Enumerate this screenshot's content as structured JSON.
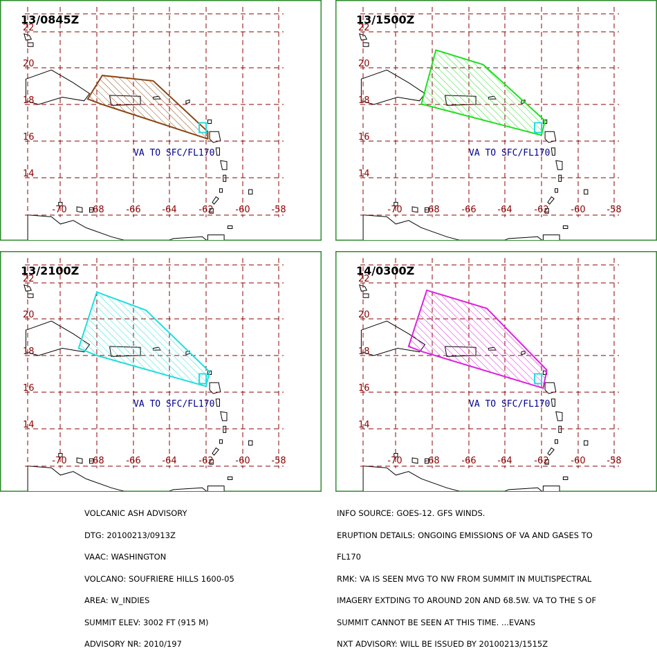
{
  "panels": [
    {
      "time": "13/0845Z",
      "color": "#8b4513",
      "polygon": [
        [
          -68.5,
          18.3
        ],
        [
          -67.7,
          19.6
        ],
        [
          -64.9,
          19.3
        ],
        [
          -61.9,
          16.5
        ],
        [
          -61.9,
          16.1
        ],
        [
          -67.7,
          18.0
        ]
      ]
    },
    {
      "time": "13/1500Z",
      "color": "#22dd22",
      "polygon": [
        [
          -68.6,
          18.0
        ],
        [
          -67.8,
          21.0
        ],
        [
          -65.2,
          20.2
        ],
        [
          -61.8,
          17.1
        ],
        [
          -62.0,
          16.3
        ],
        [
          -68.5,
          18.0
        ]
      ]
    },
    {
      "time": "13/2100Z",
      "color": "#22dddd",
      "polygon": [
        [
          -69.0,
          18.4
        ],
        [
          -68.0,
          21.5
        ],
        [
          -65.3,
          20.5
        ],
        [
          -61.8,
          17.1
        ],
        [
          -62.0,
          16.3
        ],
        [
          -68.0,
          18.0
        ]
      ]
    },
    {
      "time": "14/0300Z",
      "color": "#dd22dd",
      "polygon": [
        [
          -69.3,
          18.5
        ],
        [
          -68.3,
          21.6
        ],
        [
          -65.0,
          20.6
        ],
        [
          -61.7,
          17.2
        ],
        [
          -61.9,
          16.2
        ],
        [
          -68.5,
          18.2
        ]
      ]
    }
  ],
  "va_label": "VA TO SFC/FL170",
  "vent_color": "#22dddd",
  "lat_ticks": [
    "22",
    "20",
    "18",
    "16",
    "14"
  ],
  "lon_ticks": [
    "-70",
    "-68",
    "-66",
    "-64",
    "-62",
    "-60",
    "-58"
  ],
  "advisory_left": [
    "VOLCANIC ASH ADVISORY",
    "DTG: 20100213/0913Z",
    "VAAC: WASHINGTON",
    "VOLCANO: SOUFRIERE HILLS 1600-05",
    "AREA: W_INDIES",
    "SUMMIT ELEV: 3002 FT (915 M)",
    "ADVISORY NR: 2010/197"
  ],
  "advisory_right": [
    "INFO SOURCE: GOES-12. GFS WINDS.",
    "ERUPTION DETAILS: ONGOING EMISSIONS OF VA AND GASES TO",
    "FL170",
    "RMK: VA IS SEEN MVG TO NW FROM SUMMIT IN MULTISPECTRAL",
    "IMAGERY EXTDING TO AROUND 20N AND 68.5W. VA TO THE S OF",
    "SUMMIT CANNOT BE SEEN AT THIS TIME. ...EVANS",
    "NXT ADVISORY: WILL BE ISSUED BY 20100213/1515Z"
  ]
}
